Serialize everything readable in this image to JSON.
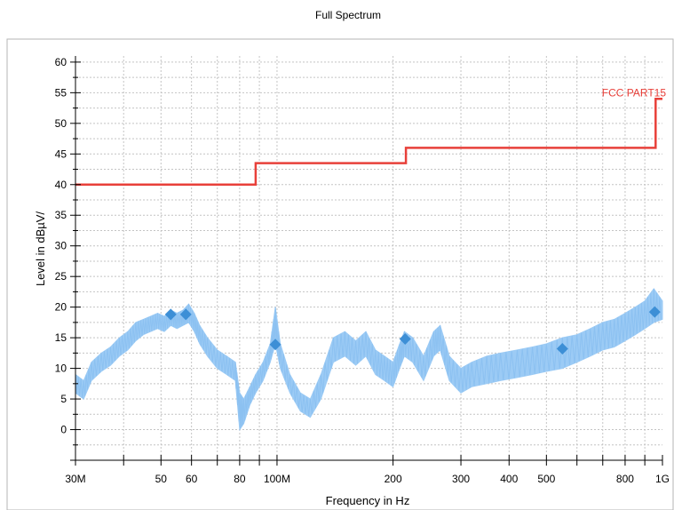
{
  "chart_data": {
    "type": "line",
    "title": "Full Spectrum",
    "xlabel": "Frequency in Hz",
    "ylabel": "Level in dBµV/",
    "xscale": "log",
    "xlim": [
      30000000,
      1000000000
    ],
    "ylim": [
      -5,
      61
    ],
    "grid": true,
    "x_ticks": [
      {
        "value": 30000000,
        "label": "30M"
      },
      {
        "value": 50000000,
        "label": "50"
      },
      {
        "value": 60000000,
        "label": "60"
      },
      {
        "value": 80000000,
        "label": "80"
      },
      {
        "value": 100000000,
        "label": "100M"
      },
      {
        "value": 200000000,
        "label": "200"
      },
      {
        "value": 300000000,
        "label": "300"
      },
      {
        "value": 400000000,
        "label": "400"
      },
      {
        "value": 500000000,
        "label": "500"
      },
      {
        "value": 800000000,
        "label": "800"
      },
      {
        "value": 1000000000,
        "label": "1G"
      }
    ],
    "y_ticks": [
      0,
      5,
      10,
      15,
      20,
      25,
      30,
      35,
      40,
      45,
      50,
      55,
      60
    ],
    "limit_line": {
      "name": "FCC PART15",
      "color": "#e8403a",
      "points": [
        [
          30000000,
          40
        ],
        [
          88000000,
          40
        ],
        [
          88000000,
          43.5
        ],
        [
          216000000,
          43.5
        ],
        [
          216000000,
          46
        ],
        [
          960000000,
          46
        ],
        [
          960000000,
          54
        ],
        [
          1000000000,
          54
        ]
      ]
    },
    "spectrum": {
      "color": "#9ccbf5",
      "upper": [
        [
          30000000,
          9
        ],
        [
          31500000,
          8
        ],
        [
          33000000,
          11
        ],
        [
          35000000,
          12.5
        ],
        [
          37000000,
          13.5
        ],
        [
          39000000,
          15
        ],
        [
          41000000,
          16
        ],
        [
          43000000,
          17.5
        ],
        [
          45000000,
          18
        ],
        [
          47000000,
          18.5
        ],
        [
          49000000,
          19
        ],
        [
          51000000,
          18.5
        ],
        [
          53000000,
          19.5
        ],
        [
          55000000,
          19
        ],
        [
          57000000,
          19.5
        ],
        [
          59000000,
          20.5
        ],
        [
          61000000,
          19
        ],
        [
          63000000,
          17
        ],
        [
          66000000,
          15
        ],
        [
          70000000,
          13
        ],
        [
          74000000,
          12
        ],
        [
          78000000,
          11
        ],
        [
          80000000,
          6
        ],
        [
          82000000,
          5
        ],
        [
          85000000,
          7
        ],
        [
          88000000,
          9
        ],
        [
          92000000,
          11
        ],
        [
          96000000,
          14
        ],
        [
          99000000,
          20
        ],
        [
          102000000,
          14
        ],
        [
          108000000,
          9
        ],
        [
          115000000,
          6
        ],
        [
          122000000,
          5
        ],
        [
          130000000,
          9
        ],
        [
          140000000,
          15
        ],
        [
          150000000,
          16
        ],
        [
          160000000,
          14.5
        ],
        [
          170000000,
          16
        ],
        [
          180000000,
          13
        ],
        [
          190000000,
          12
        ],
        [
          200000000,
          11
        ],
        [
          208000000,
          14
        ],
        [
          214000000,
          16
        ],
        [
          225000000,
          15
        ],
        [
          240000000,
          12
        ],
        [
          255000000,
          16
        ],
        [
          265000000,
          17
        ],
        [
          280000000,
          12
        ],
        [
          300000000,
          10
        ],
        [
          320000000,
          11
        ],
        [
          350000000,
          12
        ],
        [
          380000000,
          12.5
        ],
        [
          420000000,
          13
        ],
        [
          460000000,
          13.5
        ],
        [
          500000000,
          14
        ],
        [
          550000000,
          15
        ],
        [
          600000000,
          15.5
        ],
        [
          650000000,
          16.5
        ],
        [
          700000000,
          17.5
        ],
        [
          750000000,
          18
        ],
        [
          800000000,
          19
        ],
        [
          850000000,
          20
        ],
        [
          900000000,
          21
        ],
        [
          950000000,
          23
        ],
        [
          1000000000,
          21
        ]
      ],
      "lower": [
        [
          30000000,
          6
        ],
        [
          31500000,
          5
        ],
        [
          33000000,
          8
        ],
        [
          35000000,
          9.5
        ],
        [
          37000000,
          10.5
        ],
        [
          39000000,
          12
        ],
        [
          41000000,
          13
        ],
        [
          43000000,
          14.5
        ],
        [
          45000000,
          15.5
        ],
        [
          47000000,
          16
        ],
        [
          49000000,
          16.5
        ],
        [
          51000000,
          16
        ],
        [
          53000000,
          17
        ],
        [
          55000000,
          16.5
        ],
        [
          57000000,
          17
        ],
        [
          59000000,
          17.5
        ],
        [
          61000000,
          16
        ],
        [
          63000000,
          14
        ],
        [
          66000000,
          12
        ],
        [
          70000000,
          10
        ],
        [
          74000000,
          9
        ],
        [
          78000000,
          8
        ],
        [
          80000000,
          0
        ],
        [
          82000000,
          1
        ],
        [
          85000000,
          4
        ],
        [
          88000000,
          6
        ],
        [
          92000000,
          8
        ],
        [
          96000000,
          11
        ],
        [
          99000000,
          14
        ],
        [
          102000000,
          10
        ],
        [
          108000000,
          6
        ],
        [
          115000000,
          3
        ],
        [
          122000000,
          2
        ],
        [
          130000000,
          5
        ],
        [
          140000000,
          11
        ],
        [
          150000000,
          12
        ],
        [
          160000000,
          10.5
        ],
        [
          170000000,
          12
        ],
        [
          180000000,
          9
        ],
        [
          190000000,
          8
        ],
        [
          200000000,
          7
        ],
        [
          208000000,
          10
        ],
        [
          214000000,
          12
        ],
        [
          225000000,
          11
        ],
        [
          240000000,
          8
        ],
        [
          255000000,
          12
        ],
        [
          265000000,
          13
        ],
        [
          280000000,
          8
        ],
        [
          300000000,
          6
        ],
        [
          320000000,
          7
        ],
        [
          350000000,
          7.5
        ],
        [
          380000000,
          8
        ],
        [
          420000000,
          8.5
        ],
        [
          460000000,
          9
        ],
        [
          500000000,
          9.5
        ],
        [
          550000000,
          10
        ],
        [
          600000000,
          11
        ],
        [
          650000000,
          12
        ],
        [
          700000000,
          13
        ],
        [
          750000000,
          13.5
        ],
        [
          800000000,
          14.5
        ],
        [
          850000000,
          15.5
        ],
        [
          900000000,
          16.5
        ],
        [
          950000000,
          17.5
        ],
        [
          1000000000,
          18
        ]
      ]
    },
    "markers": {
      "color": "#3d8fd6",
      "points": [
        [
          53000000,
          18.8
        ],
        [
          58000000,
          18.8
        ],
        [
          99000000,
          13.9
        ],
        [
          215000000,
          14.8
        ],
        [
          550000000,
          13.2
        ],
        [
          955000000,
          19.2
        ]
      ]
    }
  }
}
